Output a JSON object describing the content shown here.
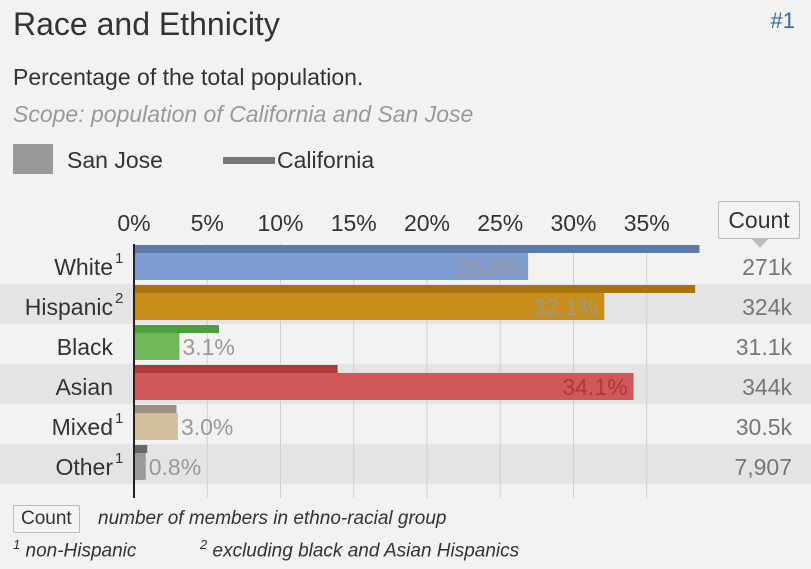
{
  "header": {
    "title": "Race and Ethnicity",
    "rank": "#1",
    "subtitle": "Percentage of the total population.",
    "scope": "Scope: population of California and San Jose"
  },
  "legend": {
    "primary": "San Jose",
    "secondary": "California"
  },
  "count_header": "Count",
  "footer": {
    "count_key": "Count",
    "count_description": "number of members in ethno-racial group",
    "note1_mark": "1",
    "note1_text": "non-Hispanic",
    "note2_mark": "2",
    "note2_text": "excluding black and Asian Hispanics"
  },
  "chart_data": {
    "type": "bar",
    "orientation": "horizontal",
    "x_ticks": [
      "0%",
      "5%",
      "10%",
      "15%",
      "20%",
      "25%",
      "30%",
      "35%"
    ],
    "xlim": [
      0,
      40
    ],
    "categories": [
      "White",
      "Hispanic",
      "Black",
      "Asian",
      "Mixed",
      "Other"
    ],
    "superscripts": [
      "1",
      "2",
      "",
      "",
      "1",
      "1"
    ],
    "series": [
      {
        "name": "San Jose",
        "values": [
          26.9,
          32.1,
          3.1,
          34.1,
          3.0,
          0.8
        ],
        "labels": [
          "26.9%",
          "32.1%",
          "3.1%",
          "34.1%",
          "3.0%",
          "0.8%"
        ]
      },
      {
        "name": "California",
        "values": [
          38.6,
          38.3,
          5.8,
          13.9,
          2.9,
          0.9
        ]
      }
    ],
    "counts": [
      "271k",
      "324k",
      "31.1k",
      "344k",
      "30.5k",
      "7,907"
    ],
    "colors": {
      "primary": [
        "#7e9ace",
        "#c98d1a",
        "#70b85a",
        "#d05858",
        "#d3bf9c",
        "#9a9a9a"
      ],
      "secondary": [
        "#5f79a8",
        "#a8740f",
        "#4c9f3e",
        "#b03a3a",
        "#9d8f7f",
        "#666666"
      ],
      "label_inside": [
        "#999999",
        "#999999",
        "#999999",
        "#a83c3c",
        "#999999",
        "#999999"
      ]
    }
  }
}
